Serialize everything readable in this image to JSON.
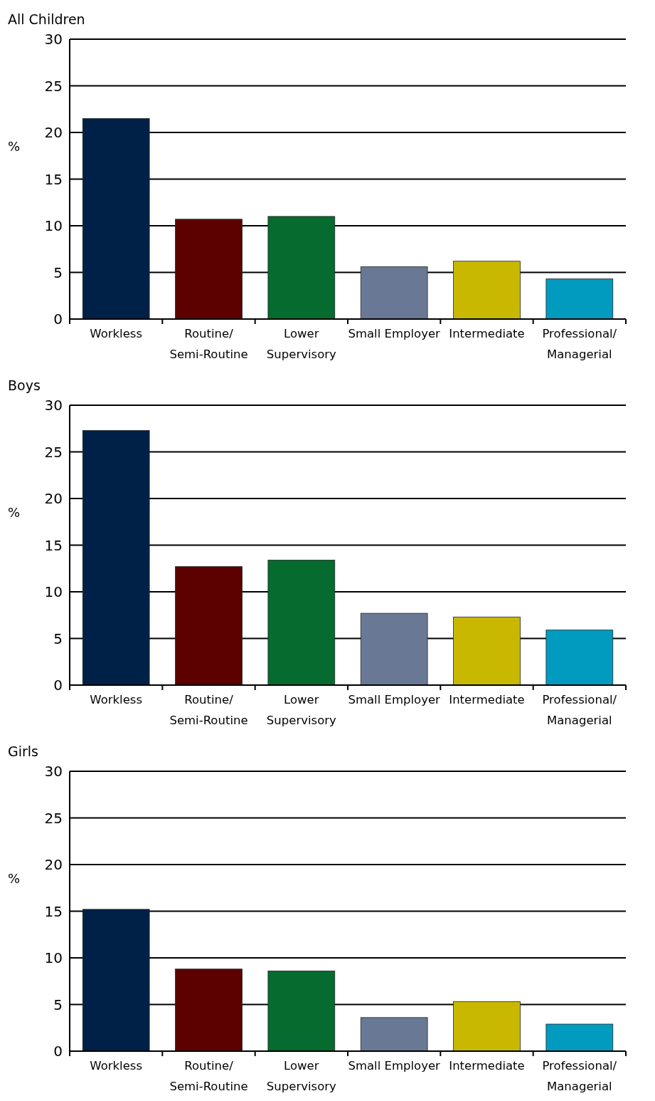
{
  "chart_data": [
    {
      "type": "bar",
      "title": "All Children",
      "ylabel": "%",
      "categories": [
        "Workless",
        "Routine/\nSemi-Routine",
        "Lower\nSupervisory",
        "Small Employer",
        "Intermediate",
        "Professional/\nManagerial"
      ],
      "values": [
        21.5,
        10.7,
        11,
        5.6,
        6.2,
        4.3
      ],
      "colors": [
        "#002147",
        "#5c0000",
        "#056b2e",
        "#697995",
        "#c8b900",
        "#009bbf"
      ],
      "ylim": [
        0,
        30
      ],
      "yticks": [
        0,
        5,
        10,
        15,
        20,
        25,
        30
      ],
      "grid": "y"
    },
    {
      "type": "bar",
      "title": "Boys",
      "ylabel": "%",
      "categories": [
        "Workless",
        "Routine/\nSemi-Routine",
        "Lower\nSupervisory",
        "Small Employer",
        "Intermediate",
        "Professional/\nManagerial"
      ],
      "values": [
        27.3,
        12.7,
        13.4,
        7.7,
        7.3,
        5.9
      ],
      "colors": [
        "#002147",
        "#5c0000",
        "#056b2e",
        "#697995",
        "#c8b900",
        "#009bbf"
      ],
      "ylim": [
        0,
        30
      ],
      "yticks": [
        0,
        5,
        10,
        15,
        20,
        25,
        30
      ],
      "grid": "y"
    },
    {
      "type": "bar",
      "title": "Girls",
      "ylabel": "%",
      "categories": [
        "Workless",
        "Routine/\nSemi-Routine",
        "Lower\nSupervisory",
        "Small Employer",
        "Intermediate",
        "Professional/\nManagerial"
      ],
      "values": [
        15.2,
        8.8,
        8.6,
        3.6,
        5.3,
        2.9
      ],
      "colors": [
        "#002147",
        "#5c0000",
        "#056b2e",
        "#697995",
        "#c8b900",
        "#009bbf"
      ],
      "ylim": [
        0,
        30
      ],
      "yticks": [
        0,
        5,
        10,
        15,
        20,
        25,
        30
      ],
      "grid": "y"
    }
  ]
}
